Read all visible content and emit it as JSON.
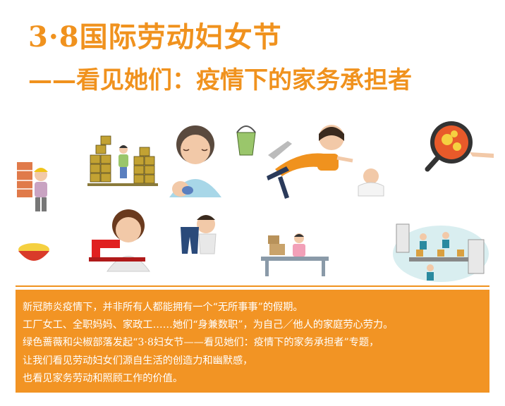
{
  "header": {
    "title": "3·8国际劳动妇女节",
    "subtitle": "——看见她们：疫情下的家务承担者"
  },
  "illustrations": [
    {
      "icon": "brick-wall-worker-icon"
    },
    {
      "icon": "stacked-cans-worker-icon"
    },
    {
      "icon": "grandmother-with-baby-icon"
    },
    {
      "icon": "cleaning-mother-icon"
    },
    {
      "icon": "baby-icon"
    },
    {
      "icon": "frying-pan-icon"
    },
    {
      "icon": "food-bowl-icon"
    },
    {
      "icon": "sewing-machine-worker-icon"
    },
    {
      "icon": "laundry-hanging-icon"
    },
    {
      "icon": "workbench-worker-icon"
    },
    {
      "icon": "factory-line-icon"
    }
  ],
  "body": {
    "lines": [
      "新冠肺炎疫情下，并非所有人都能拥有一个“无所事事”的假期。",
      "工厂女工、全职妈妈、家政工……她们“身兼数职”，为自己／他人的家庭劳心劳力。",
      "绿色蔷薇和尖椒部落发起“3·8妇女节——看见她们：疫情下的家务承担者”专题，",
      "让我们看见劳动妇女们源自生活的创造力和幽默感，",
      "也看见家务劳动和照顾工作的价值。"
    ]
  },
  "colors": {
    "accent": "#f0921e",
    "box": "#f29424",
    "text_on_box": "#ffffff"
  }
}
